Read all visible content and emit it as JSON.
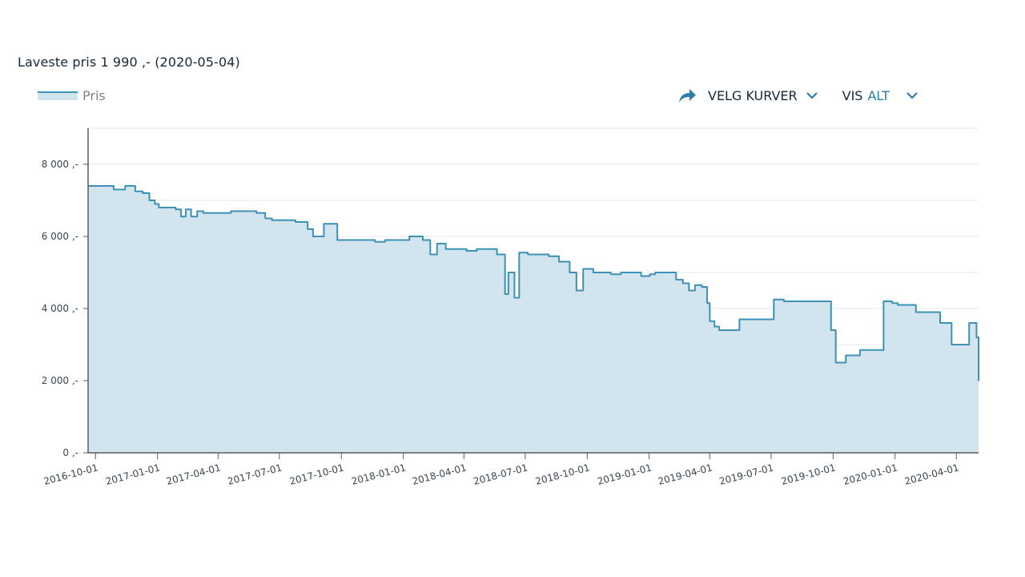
{
  "header": {
    "title": "Laveste pris 1 990 ,- (2020-05-04)"
  },
  "legend": {
    "series_label": "Pris"
  },
  "controls": {
    "select_curves_label": "VELG KURVER",
    "show_label": "VIS",
    "show_value": "ALT",
    "share_icon": "share-arrow-icon",
    "dropdown_icon": "chevron-down-icon"
  },
  "colors": {
    "line": "#3d91b5",
    "fill": "#d2e5ef",
    "grid": "#e3e8ec",
    "axis": "#555e66",
    "accent": "#2b7fa8"
  },
  "chart_data": {
    "type": "area",
    "series": [
      {
        "name": "Pris",
        "x": [
          "2016-09-20",
          "2016-10-20",
          "2016-10-28",
          "2016-11-05",
          "2016-11-14",
          "2016-11-29",
          "2016-12-05",
          "2016-12-10",
          "2016-12-20",
          "2016-12-28",
          "2017-01-03",
          "2017-01-15",
          "2017-01-28",
          "2017-02-05",
          "2017-02-12",
          "2017-02-20",
          "2017-03-01",
          "2017-03-10",
          "2017-04-01",
          "2017-04-20",
          "2017-05-10",
          "2017-05-28",
          "2017-06-10",
          "2017-06-20",
          "2017-07-01",
          "2017-07-25",
          "2017-08-03",
          "2017-08-12",
          "2017-08-20",
          "2017-09-05",
          "2017-09-25",
          "2017-10-05",
          "2017-10-20",
          "2017-11-02",
          "2017-11-20",
          "2017-12-05",
          "2017-12-20",
          "2018-01-10",
          "2018-01-20",
          "2018-01-30",
          "2018-02-10",
          "2018-02-20",
          "2018-03-05",
          "2018-03-20",
          "2018-04-05",
          "2018-04-20",
          "2018-05-05",
          "2018-05-20",
          "2018-06-01",
          "2018-06-06",
          "2018-06-15",
          "2018-06-22",
          "2018-07-05",
          "2018-07-20",
          "2018-08-05",
          "2018-08-20",
          "2018-09-05",
          "2018-09-15",
          "2018-09-25",
          "2018-10-10",
          "2018-10-25",
          "2018-11-05",
          "2018-11-20",
          "2018-12-05",
          "2018-12-20",
          "2019-01-02",
          "2019-01-10",
          "2019-01-20",
          "2019-02-10",
          "2019-02-20",
          "2019-03-01",
          "2019-03-10",
          "2019-03-20",
          "2019-03-28",
          "2019-04-01",
          "2019-04-08",
          "2019-04-15",
          "2019-04-28",
          "2019-05-15",
          "2019-06-15",
          "2019-06-30",
          "2019-07-05",
          "2019-07-20",
          "2019-08-10",
          "2019-09-05",
          "2019-09-25",
          "2019-09-28",
          "2019-10-05",
          "2019-10-12",
          "2019-10-20",
          "2019-11-10",
          "2019-11-25",
          "2019-12-15",
          "2019-12-28",
          "2020-01-05",
          "2020-01-15",
          "2020-02-01",
          "2020-02-20",
          "2020-03-01",
          "2020-03-08",
          "2020-03-25",
          "2020-04-01",
          "2020-04-20",
          "2020-04-27",
          "2020-05-01",
          "2020-05-04"
        ],
        "values": [
          7400,
          7400,
          7300,
          7300,
          7400,
          7250,
          7250,
          7200,
          7000,
          6900,
          6800,
          6800,
          6750,
          6550,
          6750,
          6550,
          6700,
          6650,
          6650,
          6700,
          6700,
          6650,
          6500,
          6450,
          6450,
          6400,
          6400,
          6200,
          6000,
          6350,
          5900,
          5900,
          5900,
          5900,
          5850,
          5900,
          5900,
          6000,
          6000,
          5900,
          5500,
          5800,
          5650,
          5650,
          5600,
          5650,
          5650,
          5500,
          4400,
          5000,
          4300,
          5550,
          5500,
          5500,
          5450,
          5300,
          5000,
          4500,
          5100,
          5000,
          5000,
          4950,
          5000,
          5000,
          4900,
          4950,
          5000,
          5000,
          4800,
          4700,
          4500,
          4650,
          4600,
          4150,
          3650,
          3500,
          3400,
          3400,
          3700,
          3700,
          3700,
          4250,
          4200,
          4200,
          4200,
          4200,
          3400,
          2500,
          2500,
          2700,
          2850,
          2850,
          4200,
          4150,
          4100,
          4100,
          3900,
          3900,
          3900,
          3600,
          3000,
          3000,
          3600,
          3600,
          3200,
          1990
        ]
      }
    ],
    "y_ticks": [
      "0 ,-",
      "2 000 ,-",
      "4 000 ,-",
      "6 000 ,-",
      "8 000 ,-"
    ],
    "y_tick_values": [
      0,
      2000,
      4000,
      6000,
      8000
    ],
    "x_ticks": [
      "2016-10-01",
      "2017-01-01",
      "2017-04-01",
      "2017-07-01",
      "2017-10-01",
      "2018-01-01",
      "2018-04-01",
      "2018-07-01",
      "2018-10-01",
      "2019-01-01",
      "2019-04-01",
      "2019-07-01",
      "2019-10-01",
      "2020-01-01",
      "2020-04-01"
    ],
    "xlim": [
      "2016-09-20",
      "2020-05-04"
    ],
    "ylim": [
      0,
      9000
    ],
    "grid": true,
    "legend_position": "top-left",
    "step": true
  }
}
